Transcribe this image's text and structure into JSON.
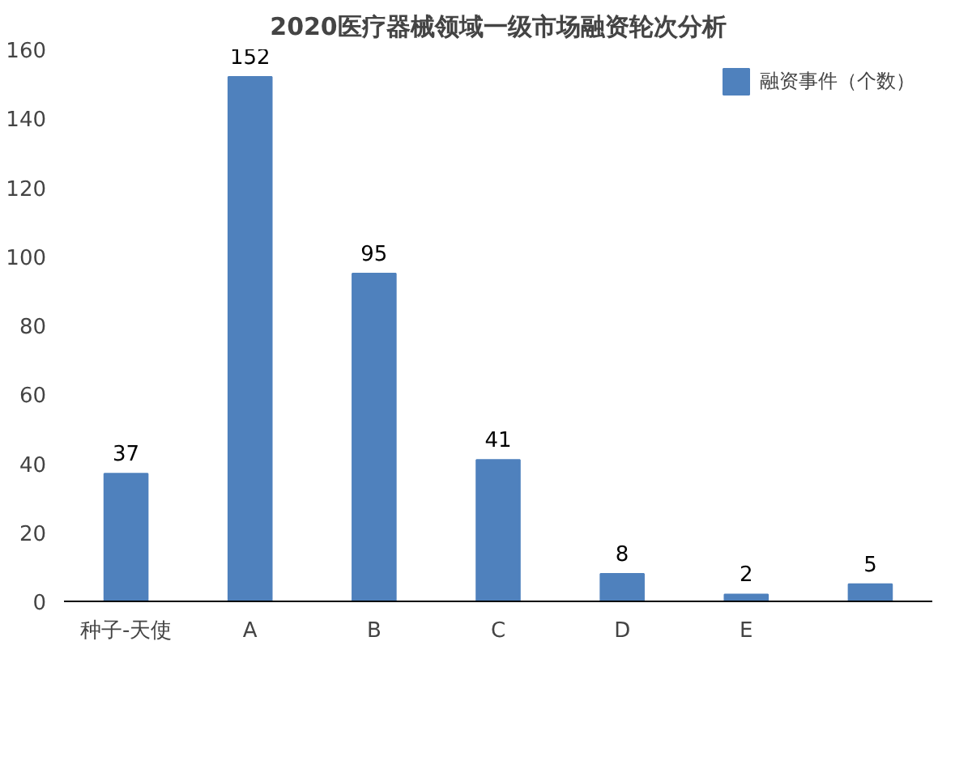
{
  "chart_data": {
    "type": "bar",
    "title": "2020医疗器械领域一级市场融资轮次分析",
    "categories": [
      "种子-天使",
      "A",
      "B",
      "C",
      "D",
      "E",
      null
    ],
    "series": [
      {
        "name": "融资事件（个数）",
        "color": "#4f81bd",
        "values": [
          37,
          152,
          95,
          41,
          8,
          2,
          5
        ]
      }
    ],
    "ylim": [
      0,
      160
    ],
    "yticks": [
      0,
      20,
      40,
      60,
      80,
      100,
      120,
      140,
      160
    ],
    "grid": false,
    "legend": "top right",
    "data_labels": true
  }
}
